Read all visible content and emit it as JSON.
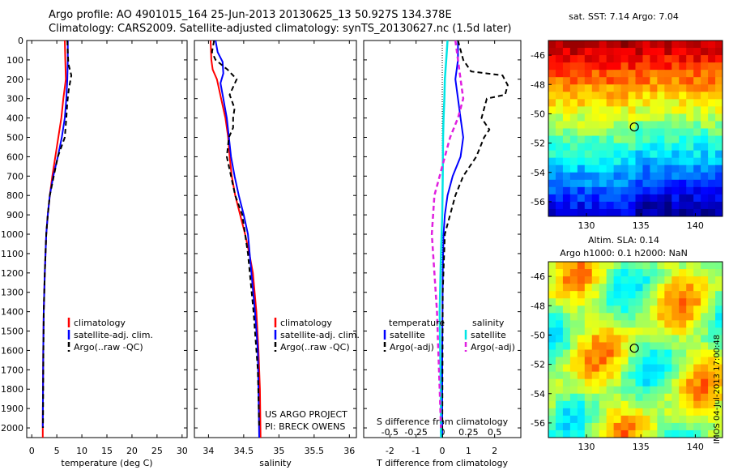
{
  "title_line1": "Argo profile: AO 4901015_164 25-Jun-2013 20130625_13 50.927S 134.378E",
  "title_line2": "Climatology: CARS2009. Satellite-adjusted climatology: synTS_20130627.nc (1.5d later)",
  "colors": {
    "climatology": "#ff0000",
    "satellite": "#0000ff",
    "argo": "#000000",
    "sal_satellite": "#00e5e5",
    "sal_argo": "#e020e0"
  },
  "chart_data": [
    {
      "type": "line",
      "xlabel": "temperature (deg C)",
      "xlim": [
        -1,
        31
      ],
      "ylim": [
        2050,
        0
      ],
      "xticks": [
        0,
        5,
        10,
        15,
        20,
        25,
        30
      ],
      "yticks": [
        0,
        100,
        200,
        300,
        400,
        500,
        600,
        700,
        800,
        900,
        1000,
        1100,
        1200,
        1300,
        1400,
        1500,
        1600,
        1700,
        1800,
        1900,
        2000
      ],
      "legend": [
        "climatology",
        "satellite-adj. clim.",
        "Argo(..raw -QC)"
      ],
      "series": [
        {
          "name": "climatology",
          "x": [
            6.6,
            6.7,
            6.8,
            6.3,
            5.9,
            5.3,
            4.7,
            4.1,
            3.6,
            3.2,
            2.9,
            2.6,
            2.4,
            2.3,
            2.25,
            2.2,
            2.2
          ],
          "y": [
            0,
            100,
            200,
            300,
            400,
            500,
            600,
            700,
            800,
            900,
            1000,
            1200,
            1400,
            1600,
            1800,
            1950,
            2050
          ]
        },
        {
          "name": "satellite-adj. clim.",
          "x": [
            7.2,
            7.2,
            7.1,
            6.9,
            6.6,
            6.0,
            5.2,
            4.3,
            3.6,
            3.2,
            2.9,
            2.6,
            2.4,
            2.3,
            2.25,
            2.2
          ],
          "y": [
            0,
            100,
            200,
            300,
            400,
            500,
            600,
            700,
            800,
            900,
            1000,
            1200,
            1400,
            1600,
            1800,
            2000
          ]
        },
        {
          "name": "Argo(..raw -QC)",
          "x": [
            7.1,
            7.2,
            7.3,
            7.9,
            7.4,
            7.1,
            6.9,
            6.6,
            5.2,
            4.4,
            3.6,
            3.2,
            2.9,
            2.6,
            2.4,
            2.3,
            2.25
          ],
          "y": [
            0,
            60,
            120,
            180,
            250,
            320,
            400,
            500,
            600,
            700,
            800,
            900,
            1000,
            1200,
            1400,
            1700,
            2000
          ]
        }
      ]
    },
    {
      "type": "line",
      "xlabel": "salinity",
      "xlim": [
        33.8,
        36.1
      ],
      "ylim": [
        2050,
        0
      ],
      "xticks": [
        34,
        34.5,
        35,
        35.5,
        36
      ],
      "legend": [
        "climatology",
        "satellite-adj. clim.",
        "Argo(..raw -QC)"
      ],
      "annotation": [
        "US ARGO PROJECT",
        "PI: BRECK OWENS"
      ],
      "series": [
        {
          "name": "climatology",
          "x": [
            34.03,
            34.04,
            34.06,
            34.12,
            34.18,
            34.24,
            34.28,
            34.3,
            34.33,
            34.38,
            34.45,
            34.52,
            34.58,
            34.63,
            34.68,
            34.71,
            34.73,
            34.74
          ],
          "y": [
            0,
            100,
            150,
            200,
            300,
            400,
            500,
            600,
            700,
            800,
            900,
            1000,
            1100,
            1200,
            1400,
            1600,
            1800,
            2050
          ]
        },
        {
          "name": "satellite-adj. clim.",
          "x": [
            34.1,
            34.13,
            34.2,
            34.21,
            34.17,
            34.21,
            34.26,
            34.29,
            34.32,
            34.37,
            34.43,
            34.5,
            34.56,
            34.61,
            34.66,
            34.7,
            34.71,
            34.72
          ],
          "y": [
            0,
            60,
            110,
            170,
            220,
            300,
            400,
            500,
            600,
            700,
            800,
            900,
            1000,
            1200,
            1400,
            1600,
            1800,
            2050
          ]
        },
        {
          "name": "Argo(..raw -QC)",
          "x": [
            34.08,
            34.05,
            34.1,
            34.27,
            34.4,
            34.3,
            34.37,
            34.35,
            34.35,
            34.29,
            34.26,
            34.32,
            34.38,
            34.48,
            34.56,
            34.64,
            34.7,
            34.72
          ],
          "y": [
            0,
            60,
            100,
            150,
            200,
            280,
            350,
            400,
            450,
            500,
            600,
            700,
            800,
            900,
            1100,
            1400,
            1700,
            2000
          ]
        }
      ]
    },
    {
      "type": "line",
      "xlabel": "T difference from climatology",
      "secondary_xlabel": "S difference from climatology",
      "xlim": [
        -3,
        3
      ],
      "ylim": [
        2050,
        0
      ],
      "xticks": [
        -2,
        -1,
        0,
        1,
        2
      ],
      "secondary_xticks": [
        "-0.5",
        "-0.25",
        "0",
        "0.25",
        "0.5"
      ],
      "legend_left": [
        "temperature",
        "satellite",
        "Argo(-adj)"
      ],
      "legend_right": [
        "salinity",
        "satellite",
        "Argo(-adj)"
      ],
      "series": [
        {
          "name": "temperature satellite",
          "x": [
            0.6,
            0.6,
            0.5,
            0.6,
            0.7,
            0.8,
            0.7,
            0.4,
            0.2,
            0.1,
            0.05,
            0.02,
            0.0,
            0.0
          ],
          "y": [
            0,
            100,
            200,
            300,
            400,
            500,
            600,
            700,
            800,
            900,
            1000,
            1200,
            1600,
            2050
          ]
        },
        {
          "name": "temperature Argo(-adj)",
          "x": [
            0.6,
            0.8,
            1.1,
            1.7,
            2.3,
            2.5,
            2.4,
            1.7,
            1.5,
            1.8,
            1.6,
            1.3,
            0.8,
            0.5,
            0.3,
            0.1,
            0.02,
            0.0
          ],
          "y": [
            0,
            100,
            160,
            170,
            180,
            230,
            280,
            300,
            400,
            460,
            500,
            600,
            700,
            800,
            900,
            1000,
            1300,
            2050
          ]
        },
        {
          "name": "salinity satellite",
          "x": [
            0.2,
            0.15,
            0.1,
            0.08,
            0.05,
            0.03,
            0.02,
            0.0,
            -0.05,
            -0.1,
            -0.08,
            -0.06,
            -0.05,
            -0.05
          ],
          "y": [
            0,
            100,
            200,
            300,
            400,
            500,
            700,
            900,
            1100,
            1400,
            1600,
            1800,
            1950,
            2050
          ]
        },
        {
          "name": "salinity Argo(-adj)",
          "x": [
            0.5,
            0.6,
            0.7,
            0.8,
            0.6,
            0.3,
            0.1,
            -0.1,
            -0.3,
            -0.4,
            -0.3,
            -0.2,
            -0.15,
            -0.1,
            -0.05
          ],
          "y": [
            0,
            100,
            200,
            300,
            400,
            500,
            600,
            700,
            800,
            1000,
            1200,
            1400,
            1600,
            1800,
            2000
          ]
        }
      ]
    },
    {
      "type": "heatmap",
      "title": "sat. SST: 7.14 Argo: 7.04",
      "xticks": [
        130,
        135,
        140
      ],
      "yticks": [
        -46,
        -48,
        -50,
        -52,
        -54,
        -56
      ],
      "xlim": [
        126.5,
        142.5
      ],
      "ylim": [
        -57,
        -45
      ],
      "marker": {
        "x": 134.4,
        "y": -50.9
      }
    },
    {
      "type": "heatmap",
      "title": "Altim. SLA: 0.14",
      "subtitle": "Argo h1000: 0.1 h2000: NaN",
      "xticks": [
        130,
        135,
        140
      ],
      "yticks": [
        -46,
        -48,
        -50,
        -52,
        -54,
        -56
      ],
      "xlim": [
        126.5,
        142.5
      ],
      "ylim": [
        -57,
        -45
      ],
      "marker": {
        "x": 134.4,
        "y": -50.9
      }
    }
  ],
  "side_label": "IMOS 04-Jul-2013 17:00:48"
}
